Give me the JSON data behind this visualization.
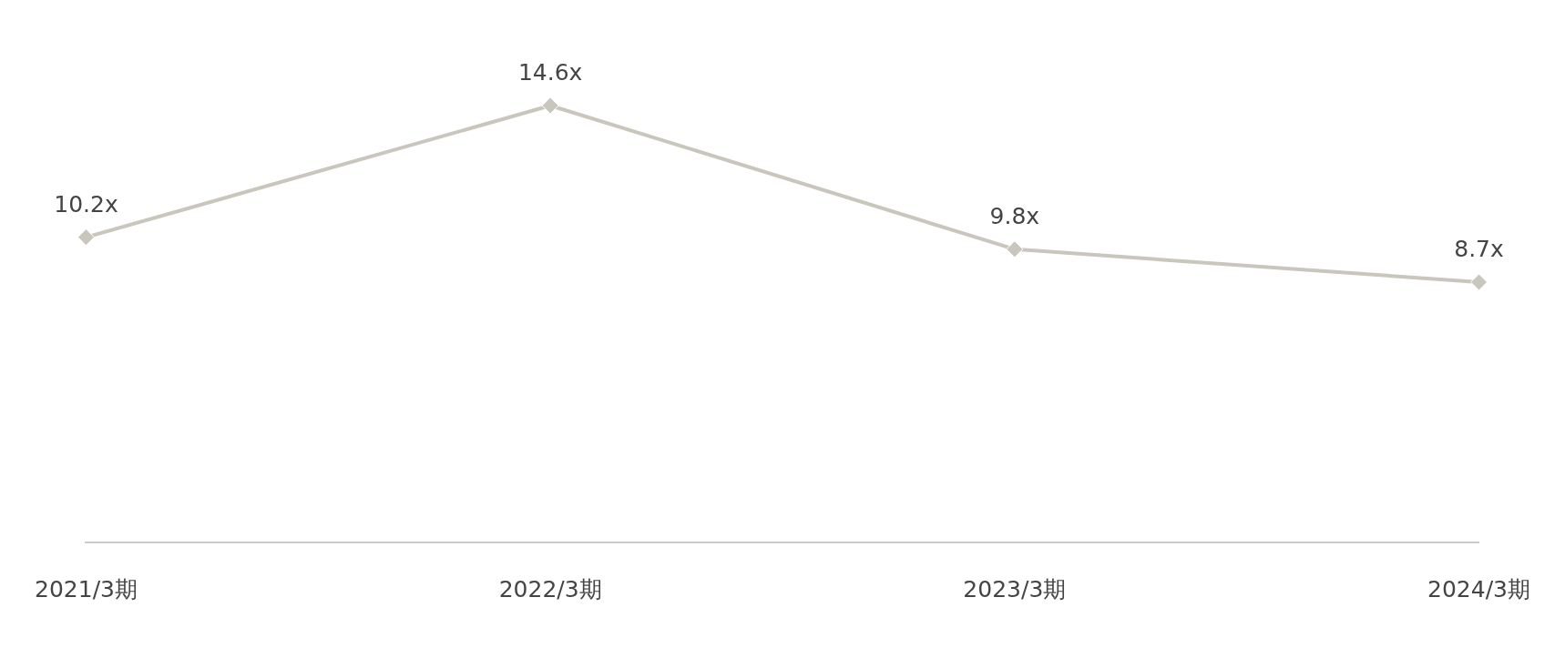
{
  "chart_data": {
    "type": "line",
    "categories": [
      "2021/3期",
      "2022/3期",
      "2023/3期",
      "2024/3期"
    ],
    "series": [
      {
        "color": "#c8c6bd",
        "values": [
          10.2,
          14.6,
          9.8,
          8.7
        ],
        "value_labels": [
          "10.2x",
          "14.6x",
          "9.8x",
          "8.7x"
        ]
      }
    ],
    "tick_labels": "x",
    "grid": false,
    "legend": false,
    "marker": "diamond",
    "line_style": "solid"
  }
}
